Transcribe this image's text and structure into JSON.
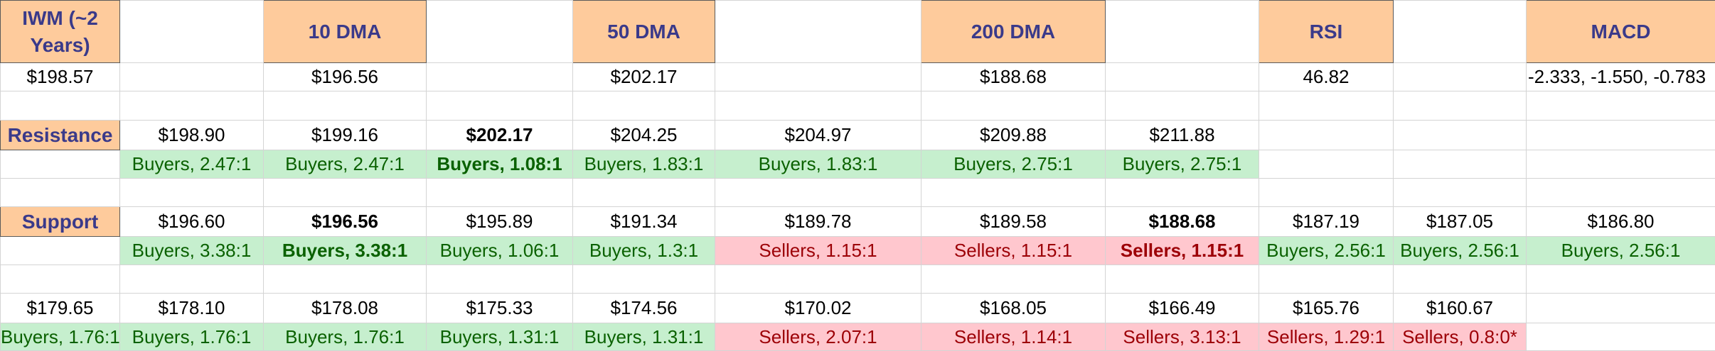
{
  "headers": {
    "ticker": "IWM (~2 Years)",
    "dma10": "10 DMA",
    "dma50": "50 DMA",
    "dma200": "200 DMA",
    "rsi": "RSI",
    "macd": "MACD"
  },
  "values": {
    "price": "$198.57",
    "dma10": "$196.56",
    "dma50": "$202.17",
    "dma200": "$188.68",
    "rsi": "46.82",
    "macd": "-2.333, -1.550, -0.783"
  },
  "resistance": {
    "label": "Resistance",
    "levels": [
      "$198.90",
      "$199.16",
      "$202.17",
      "$204.25",
      "$204.97",
      "$209.88",
      "$211.88"
    ],
    "ratios": [
      "Buyers, 2.47:1",
      "Buyers, 2.47:1",
      "Buyers, 1.08:1",
      "Buyers, 1.83:1",
      "Buyers, 1.83:1",
      "Buyers, 2.75:1",
      "Buyers, 2.75:1"
    ]
  },
  "support": {
    "label": "Support",
    "levels": [
      "$196.60",
      "$196.56",
      "$195.89",
      "$191.34",
      "$189.78",
      "$189.58",
      "$188.68",
      "$187.19",
      "$187.05",
      "$186.80"
    ],
    "ratios": [
      "Buyers, 3.38:1",
      "Buyers, 3.38:1",
      "Buyers, 1.06:1",
      "Buyers, 1.3:1",
      "Sellers, 1.15:1",
      "Sellers, 1.15:1",
      "Sellers, 1.15:1",
      "Buyers, 2.56:1",
      "Buyers, 2.56:1",
      "Buyers, 2.56:1"
    ]
  },
  "lower_support": {
    "levels": [
      "$179.65",
      "$178.10",
      "$178.08",
      "$175.33",
      "$174.56",
      "$170.02",
      "$168.05",
      "$166.49",
      "$165.76",
      "$160.67"
    ],
    "ratios": [
      "Buyers, 1.76:1",
      "Buyers, 1.76:1",
      "Buyers, 1.76:1",
      "Buyers, 1.31:1",
      "Buyers, 1.31:1",
      "Sellers, 2.07:1",
      "Sellers, 1.14:1",
      "Sellers, 3.13:1",
      "Sellers, 1.29:1",
      "Sellers, 0.8:0*"
    ]
  },
  "colors": {
    "header_bg": "#fecb9c",
    "header_text": "#3a3a8a",
    "buyers_bg": "#c6efce",
    "buyers_text": "#0a6100",
    "sellers_bg": "#ffc7ce",
    "sellers_text": "#9c0006"
  }
}
